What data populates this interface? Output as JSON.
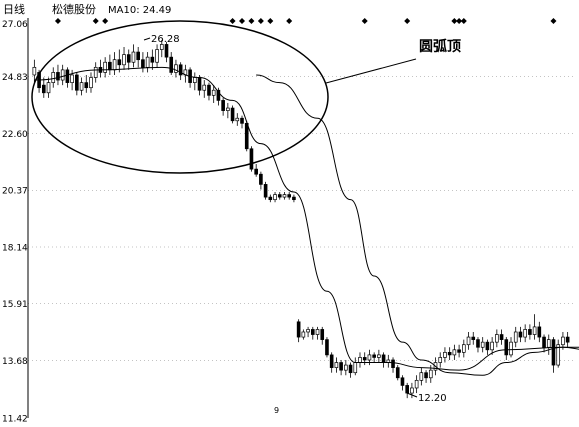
{
  "header": {
    "period": "日线",
    "stock_name": "松德股份",
    "ma_text": "MA10: 24.49"
  },
  "annotation": {
    "label": "圆弧顶"
  },
  "colors": {
    "up": "#ffffff",
    "down": "#000000",
    "line": "#000000",
    "grid": "#888888"
  },
  "chart_data": {
    "type": "candlestick",
    "title": "",
    "xlabel": "",
    "ylabel": "",
    "ylim": [
      11.42,
      27.06
    ],
    "y_ticks": [
      "27.06",
      "24.83",
      "22.60",
      "20.37",
      "18.14",
      "15.91",
      "13.68",
      "11.42"
    ],
    "grid": "dotted-horizontal",
    "x_axis_mark": "9",
    "peak_label": "26.28",
    "trough_label": "12.20",
    "candles": [
      [
        24.9,
        25.2,
        24.6,
        25.5
      ],
      [
        25.0,
        24.4,
        24.2,
        25.1
      ],
      [
        24.5,
        24.2,
        24.0,
        24.8
      ],
      [
        24.2,
        24.6,
        24.0,
        24.8
      ],
      [
        24.6,
        25.0,
        24.4,
        25.2
      ],
      [
        25.0,
        24.7,
        24.5,
        25.3
      ],
      [
        24.7,
        25.1,
        24.5,
        25.3
      ],
      [
        25.1,
        24.6,
        24.4,
        25.2
      ],
      [
        24.6,
        24.9,
        24.3,
        25.1
      ],
      [
        24.9,
        24.3,
        24.1,
        25.0
      ],
      [
        24.3,
        24.6,
        24.1,
        24.8
      ],
      [
        24.6,
        24.4,
        24.2,
        24.9
      ],
      [
        24.4,
        24.8,
        24.2,
        25.0
      ],
      [
        24.8,
        25.2,
        24.6,
        25.4
      ],
      [
        25.2,
        25.0,
        24.8,
        25.5
      ],
      [
        25.0,
        25.4,
        24.8,
        25.6
      ],
      [
        25.4,
        25.1,
        24.9,
        25.7
      ],
      [
        25.1,
        25.5,
        24.9,
        25.8
      ],
      [
        25.5,
        25.3,
        25.0,
        25.9
      ],
      [
        25.3,
        25.7,
        25.1,
        26.0
      ],
      [
        25.7,
        25.4,
        25.1,
        25.9
      ],
      [
        25.4,
        25.8,
        25.2,
        26.1
      ],
      [
        25.8,
        25.5,
        25.2,
        26.0
      ],
      [
        25.5,
        25.2,
        25.0,
        25.8
      ],
      [
        25.2,
        25.6,
        25.0,
        25.8
      ],
      [
        25.6,
        25.4,
        25.1,
        25.9
      ],
      [
        25.4,
        25.9,
        25.2,
        26.1
      ],
      [
        25.9,
        26.1,
        25.6,
        26.28
      ],
      [
        26.1,
        25.6,
        25.4,
        26.2
      ],
      [
        25.6,
        25.0,
        24.9,
        25.8
      ],
      [
        25.0,
        25.3,
        24.8,
        25.5
      ],
      [
        25.3,
        24.9,
        24.7,
        25.4
      ],
      [
        24.9,
        25.1,
        24.6,
        25.3
      ],
      [
        25.1,
        24.6,
        24.4,
        25.2
      ],
      [
        24.6,
        24.8,
        24.3,
        25.0
      ],
      [
        24.8,
        24.3,
        24.1,
        24.9
      ],
      [
        24.3,
        24.5,
        24.0,
        24.7
      ],
      [
        24.5,
        24.1,
        23.9,
        24.6
      ],
      [
        24.1,
        24.3,
        23.8,
        24.5
      ],
      [
        24.3,
        23.9,
        23.7,
        24.4
      ],
      [
        23.9,
        23.5,
        23.3,
        24.0
      ],
      [
        23.5,
        23.6,
        23.2,
        23.8
      ],
      [
        23.6,
        23.1,
        23.0,
        23.7
      ],
      [
        23.1,
        23.2,
        22.9,
        23.4
      ],
      [
        23.2,
        23.0,
        22.8,
        23.3
      ],
      [
        23.0,
        22.0,
        21.9,
        23.1
      ],
      [
        22.0,
        21.2,
        21.1,
        22.1
      ],
      [
        21.2,
        21.0,
        20.9,
        21.4
      ],
      [
        21.0,
        20.6,
        20.4,
        21.1
      ],
      [
        20.6,
        20.1,
        20.0,
        20.7
      ],
      [
        20.1,
        20.0,
        19.9,
        20.2
      ],
      [
        20.0,
        20.2,
        19.9,
        20.3
      ],
      [
        20.2,
        20.1,
        20.0,
        20.3
      ],
      [
        20.1,
        20.2,
        20.0,
        20.3
      ],
      [
        20.2,
        20.1,
        20.0,
        20.3
      ],
      [
        20.1,
        20.0,
        19.9,
        20.2
      ],
      [
        15.2,
        14.6,
        14.4,
        15.3
      ],
      [
        14.6,
        14.8,
        14.5,
        14.9
      ],
      [
        14.8,
        14.9,
        14.6,
        15.0
      ],
      [
        14.9,
        14.7,
        14.5,
        15.0
      ],
      [
        14.7,
        14.9,
        14.5,
        15.0
      ],
      [
        14.9,
        14.5,
        14.3,
        15.0
      ],
      [
        14.5,
        13.9,
        13.8,
        14.6
      ],
      [
        13.9,
        13.4,
        13.2,
        14.0
      ],
      [
        13.4,
        13.6,
        13.2,
        13.8
      ],
      [
        13.6,
        13.3,
        13.1,
        13.7
      ],
      [
        13.3,
        13.5,
        13.1,
        13.7
      ],
      [
        13.5,
        13.2,
        13.0,
        13.6
      ],
      [
        13.2,
        13.6,
        13.1,
        13.8
      ],
      [
        13.6,
        13.8,
        13.4,
        14.0
      ],
      [
        13.8,
        13.7,
        13.5,
        14.0
      ],
      [
        13.7,
        13.9,
        13.5,
        14.1
      ],
      [
        13.9,
        13.8,
        13.6,
        14.0
      ],
      [
        13.8,
        13.9,
        13.6,
        14.1
      ],
      [
        13.9,
        13.6,
        13.4,
        14.0
      ],
      [
        13.6,
        13.7,
        13.4,
        13.9
      ],
      [
        13.7,
        13.4,
        13.2,
        13.8
      ],
      [
        13.4,
        13.0,
        12.9,
        13.5
      ],
      [
        13.0,
        12.7,
        12.5,
        13.1
      ],
      [
        12.7,
        12.4,
        12.2,
        12.8
      ],
      [
        12.4,
        12.6,
        12.2,
        12.8
      ],
      [
        12.6,
        12.9,
        12.4,
        13.1
      ],
      [
        12.9,
        13.2,
        12.7,
        13.4
      ],
      [
        13.2,
        13.0,
        12.8,
        13.3
      ],
      [
        13.0,
        13.3,
        12.8,
        13.5
      ],
      [
        13.3,
        13.6,
        13.1,
        13.8
      ],
      [
        13.6,
        13.8,
        13.4,
        14.0
      ],
      [
        13.8,
        14.0,
        13.6,
        14.2
      ],
      [
        14.0,
        13.9,
        13.7,
        14.2
      ],
      [
        13.9,
        14.1,
        13.7,
        14.3
      ],
      [
        14.1,
        14.0,
        13.8,
        14.3
      ],
      [
        14.0,
        14.3,
        13.8,
        14.5
      ],
      [
        14.3,
        14.6,
        14.1,
        14.8
      ],
      [
        14.6,
        14.5,
        14.3,
        14.8
      ],
      [
        14.5,
        14.2,
        14.0,
        14.6
      ],
      [
        14.2,
        14.4,
        14.0,
        14.6
      ],
      [
        14.4,
        14.1,
        13.9,
        14.5
      ],
      [
        14.1,
        14.4,
        13.9,
        14.6
      ],
      [
        14.4,
        14.7,
        14.2,
        14.9
      ],
      [
        14.7,
        14.5,
        14.3,
        14.9
      ],
      [
        14.5,
        13.9,
        13.7,
        14.6
      ],
      [
        13.9,
        14.4,
        13.8,
        14.6
      ],
      [
        14.4,
        14.8,
        14.2,
        15.0
      ],
      [
        14.8,
        14.6,
        14.4,
        15.0
      ],
      [
        14.6,
        14.9,
        14.4,
        15.1
      ],
      [
        14.9,
        14.7,
        14.5,
        15.1
      ],
      [
        14.7,
        15.0,
        14.5,
        15.5
      ],
      [
        15.0,
        14.6,
        14.4,
        15.2
      ],
      [
        14.6,
        14.2,
        14.0,
        14.7
      ],
      [
        14.2,
        14.5,
        13.9,
        14.7
      ],
      [
        14.5,
        13.5,
        13.2,
        14.6
      ],
      [
        13.5,
        14.3,
        13.4,
        14.5
      ],
      [
        14.3,
        14.6,
        14.1,
        14.8
      ],
      [
        14.6,
        14.4,
        14.2,
        14.8
      ]
    ],
    "ma_curves": [
      {
        "name": "",
        "x": [
          0,
          14,
          27,
          35,
          42,
          48,
          55,
          62,
          68,
          75,
          82,
          90,
          100,
          112,
          117
        ],
        "y": [
          24.7,
          25.1,
          25.2,
          24.8,
          23.9,
          22.2,
          20.3,
          16.4,
          13.6,
          13.6,
          13.4,
          13.3,
          14.1,
          14.2,
          14.1
        ]
      },
      {
        "name": "",
        "x": [
          47,
          52,
          60,
          67,
          72,
          78,
          82,
          88,
          95,
          100,
          106,
          112,
          117
        ],
        "y": [
          24.9,
          24.6,
          23.2,
          20.0,
          17.0,
          14.4,
          13.7,
          13.2,
          13.1,
          13.6,
          14.0,
          14.2,
          14.2
        ]
      }
    ],
    "top_markers": [
      5,
      13,
      15,
      42,
      44,
      46,
      48,
      50,
      54,
      70,
      79,
      89,
      90,
      91,
      110
    ]
  }
}
